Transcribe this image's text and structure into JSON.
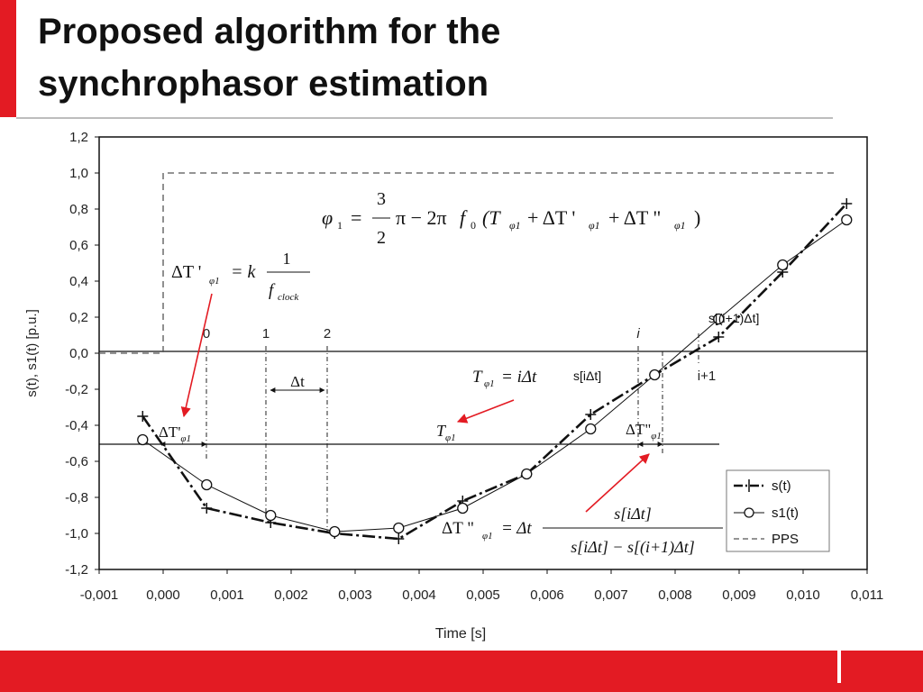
{
  "slide": {
    "title_line1": "Proposed algorithm for the",
    "title_line2": "synchrophasor estimation",
    "accent_color": "#e31b23"
  },
  "chart_data": {
    "type": "line",
    "xlabel": "Time [s]",
    "ylabel": "s(t), s1(t) [p.u.]",
    "xlim": [
      -0.001,
      0.011
    ],
    "ylim": [
      -1.2,
      1.2
    ],
    "x_ticks": [
      "-0,001",
      "0,000",
      "0,001",
      "0,002",
      "0,003",
      "0,004",
      "0,005",
      "0,006",
      "0,007",
      "0,008",
      "0,009",
      "0,010",
      "0,011"
    ],
    "y_ticks": [
      "1,2",
      "1,0",
      "0,8",
      "0,6",
      "0,4",
      "0,2",
      "0,0",
      "-0,2",
      "-0,4",
      "-0,6",
      "-0,8",
      "-1,0",
      "-1,2"
    ],
    "grid": false,
    "legend_position": "bottom-right",
    "series": [
      {
        "name": "s(t)",
        "style": "dash-dot with plus markers",
        "color": "#111111",
        "points": [
          [
            -0.00032,
            -0.35
          ],
          [
            0.00068,
            -0.86
          ],
          [
            0.00168,
            -0.94
          ],
          [
            0.00268,
            -1.0
          ],
          [
            0.00368,
            -1.03
          ],
          [
            0.00468,
            -0.82
          ],
          [
            0.00568,
            -0.67
          ],
          [
            0.00668,
            -0.34
          ],
          [
            0.00768,
            -0.12
          ],
          [
            0.00868,
            0.09
          ],
          [
            0.00968,
            0.45
          ],
          [
            0.01068,
            0.83
          ]
        ]
      },
      {
        "name": "s1(t)",
        "style": "solid with circle markers",
        "color": "#111111",
        "points": [
          [
            -0.00032,
            -0.48
          ],
          [
            0.00068,
            -0.73
          ],
          [
            0.00168,
            -0.9
          ],
          [
            0.00268,
            -0.99
          ],
          [
            0.00368,
            -0.97
          ],
          [
            0.00468,
            -0.86
          ],
          [
            0.00568,
            -0.67
          ],
          [
            0.00668,
            -0.42
          ],
          [
            0.00768,
            -0.12
          ],
          [
            0.00868,
            0.19
          ],
          [
            0.00968,
            0.49
          ],
          [
            0.01068,
            0.74
          ]
        ]
      },
      {
        "name": "PPS",
        "style": "dashed",
        "color": "#555555",
        "points": [
          [
            -0.001,
            0.0
          ],
          [
            0.0,
            0.0
          ],
          [
            0.0,
            1.0
          ],
          [
            0.0105,
            1.0
          ]
        ]
      }
    ],
    "annotations": {
      "sample_labels": [
        "0",
        "1",
        "2",
        "i",
        "i+1"
      ],
      "delta_t": "Δt",
      "delta_t_prime": "ΔT'",
      "delta_t_prime_sub": "φ1",
      "delta_t_dprime": "ΔT\"",
      "delta_t_dprime_sub": "φ1",
      "T_phi": "T",
      "T_phi_sub": "φ1",
      "s_i": "s[iΔt]",
      "s_i1": "s[(i+1)Δt]",
      "arrow_color": "#e31b23"
    },
    "formulas": {
      "phi1": "φ1 = 3/2 π − 2π f0 (Tφ1 + ΔT'φ1 + ΔT\"φ1)",
      "phi1_lhs": "φ",
      "phi1_lhs_sub": "1",
      "phi1_eq": "=",
      "phi1_num": "3",
      "phi1_den": "2",
      "phi1_rest": "π − 2π",
      "phi1_f": "f",
      "phi1_f_sub": "0",
      "phi1_paren": "(T",
      "phi1_p1": "+ ΔT '",
      "phi1_p2": "+ ΔT \"",
      "phi1_close": ")",
      "phi1_sub": "φ1",
      "dtp_lhs": "ΔT '",
      "dtp_sub": "φ1",
      "dtp_mid": "= k",
      "dtp_num": "1",
      "dtp_den_f": "f",
      "dtp_den_sub": "clock",
      "tphi_lhs": "T",
      "tphi_sub": "φ1",
      "tphi_rhs": "= iΔt",
      "dtpp_lhs": "ΔT \"",
      "dtpp_sub": "φ1",
      "dtpp_mid": "= Δt",
      "dtpp_num": "s[iΔt]",
      "dtpp_den": "s[iΔt] − s[(i+1)Δt]"
    }
  }
}
